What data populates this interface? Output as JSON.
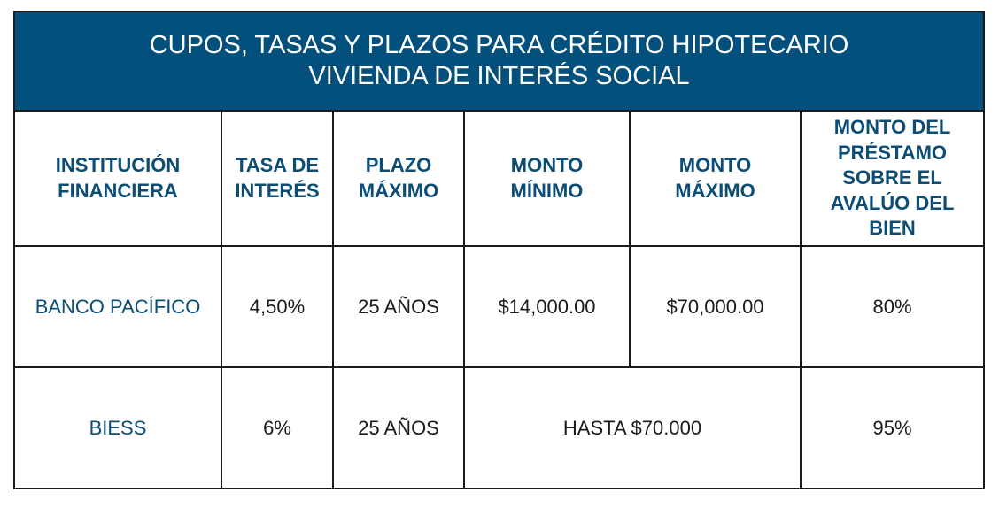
{
  "title": {
    "line1": "CUPOS, TASAS Y PLAZOS PARA CRÉDITO HIPOTECARIO",
    "line2": "VIVIENDA DE INTERÉS SOCIAL"
  },
  "columns": [
    "INSTITUCIÓN FINANCIERA",
    "TASA DE INTERÉS",
    "PLAZO MÁXIMO",
    "MONTO MÍNIMO",
    "MONTO MÁXIMO",
    "MONTO DEL PRÉSTAMO SOBRE EL AVALÚO DEL BIEN"
  ],
  "rows": [
    {
      "institution": "BANCO PACÍFICO",
      "rate": "4,50%",
      "term": "25 AÑOS",
      "min_amount": "$14,000.00",
      "max_amount": "$70,000.00",
      "loan_to_value": "80%"
    },
    {
      "institution": "BIESS",
      "rate": "6%",
      "term": "25 AÑOS",
      "amount_range": "HASTA $70.000",
      "loan_to_value": "95%"
    }
  ],
  "colors": {
    "title_bg": "#03507d",
    "header_text": "#0c4d76"
  }
}
